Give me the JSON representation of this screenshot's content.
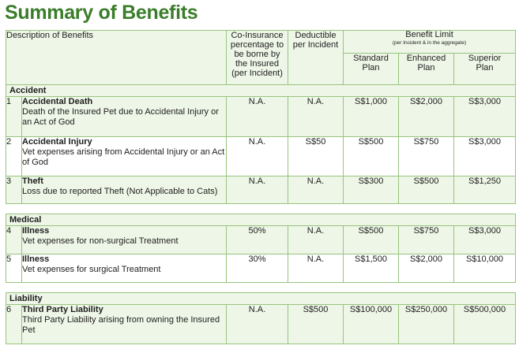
{
  "title": "Summary of Benefits",
  "header": {
    "description": "Description of Benefits",
    "coinsurance": [
      "Co-Insurance",
      "percentage to",
      "be borne by",
      "the Insured",
      "(per Incident)"
    ],
    "deductible": [
      "Deductible",
      "per Incident"
    ],
    "benefit_limit": "Benefit Limit",
    "benefit_limit_sub": "(per Incident & in the aggregate)",
    "plans": [
      {
        "line1": "Standard",
        "line2": "Plan"
      },
      {
        "line1": "Enhanced",
        "line2": "Plan"
      },
      {
        "line1": "Superior",
        "line2": "Plan"
      }
    ]
  },
  "sections": [
    {
      "name": "Accident",
      "rows": [
        {
          "num": "1",
          "name": "Accidental Death",
          "desc": "Death of the Insured Pet due to Accidental Injury or an Act of God",
          "coins": "N.A.",
          "ded": "N.A.",
          "standard": "S$1,000",
          "enhanced": "S$2,000",
          "superior": "S$3,000"
        },
        {
          "num": "2",
          "name": "Accidental Injury",
          "desc": "Vet expenses arising from Accidental Injury or an Act of God",
          "coins": "N.A.",
          "ded": "S$50",
          "standard": "S$500",
          "enhanced": "S$750",
          "superior": "S$3,000"
        },
        {
          "num": "3",
          "name": "Theft",
          "desc": "Loss due to reported Theft (Not Applicable to Cats)",
          "coins": "N.A.",
          "ded": "N.A.",
          "standard": "S$300",
          "enhanced": "S$500",
          "superior": "S$1,250"
        }
      ]
    },
    {
      "name": "Medical",
      "rows": [
        {
          "num": "4",
          "name": "Illness",
          "desc": "Vet expenses for non-surgical Treatment",
          "coins": "50%",
          "ded": "N.A.",
          "standard": "S$500",
          "enhanced": "S$750",
          "superior": "S$3,000"
        },
        {
          "num": "5",
          "name": "Illness",
          "desc": "Vet expenses for surgical Treatment",
          "coins": "30%",
          "ded": "N.A.",
          "standard": "S$1,500",
          "enhanced": "S$2,000",
          "superior": "S$10,000"
        }
      ]
    },
    {
      "name": "Liability",
      "rows": [
        {
          "num": "6",
          "name": "Third Party Liability",
          "desc": "Third Party Liability arising from owning the Insured Pet",
          "coins": "N.A.",
          "ded": "S$500",
          "standard": "S$100,000",
          "enhanced": "S$250,000",
          "superior": "S$500,000"
        }
      ]
    }
  ]
}
